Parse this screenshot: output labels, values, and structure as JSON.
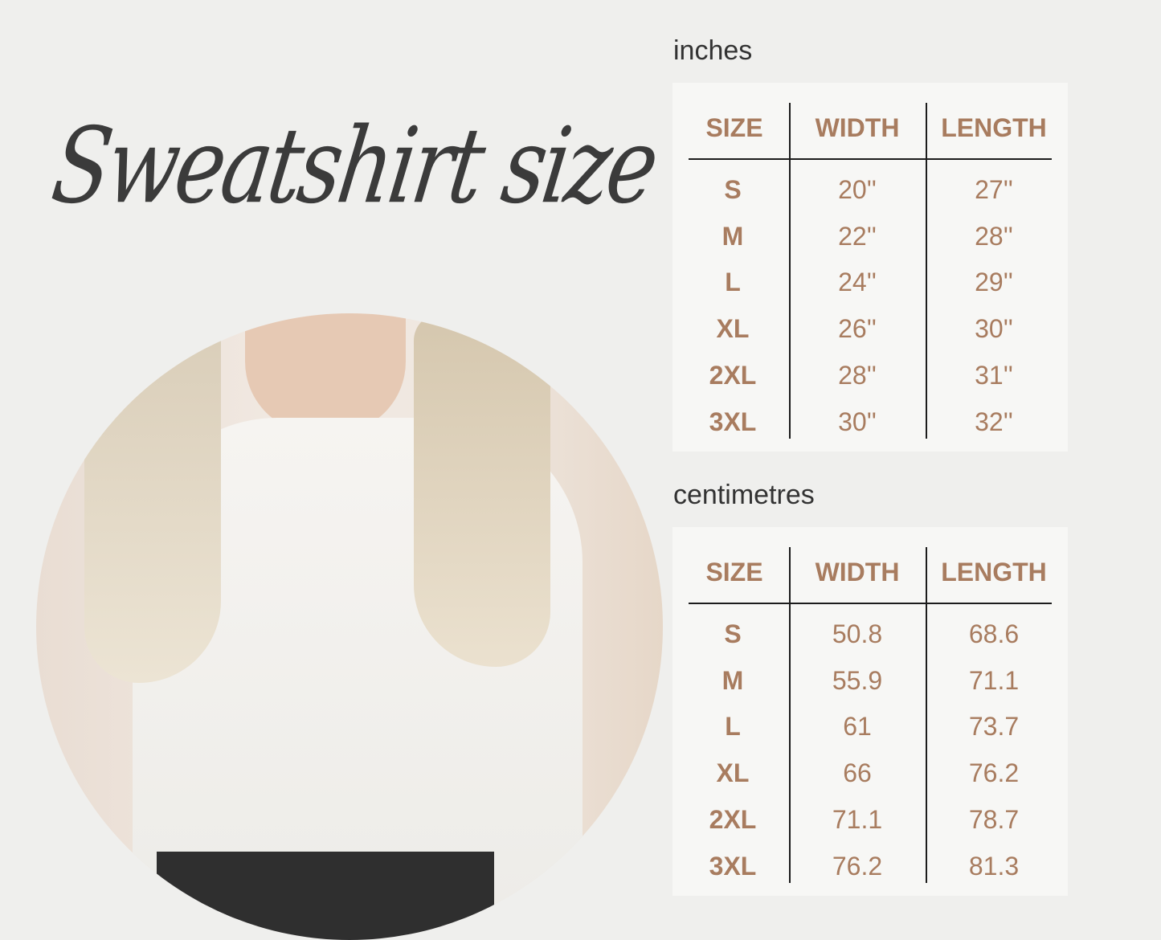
{
  "title": "Sweatshirt size",
  "accent_color": "#a87c5f",
  "headers": [
    "SIZE",
    "WIDTH",
    "LENGTH"
  ],
  "tables": [
    {
      "unit": "inches",
      "rows": [
        [
          "S",
          "20''",
          "27''"
        ],
        [
          "M",
          "22''",
          "28''"
        ],
        [
          "L",
          "24''",
          "29''"
        ],
        [
          "XL",
          "26''",
          "30''"
        ],
        [
          "2XL",
          "28''",
          "31''"
        ],
        [
          "3XL",
          "30''",
          "32''"
        ]
      ]
    },
    {
      "unit": "centimetres",
      "rows": [
        [
          "S",
          "50.8",
          "68.6"
        ],
        [
          "M",
          "55.9",
          "71.1"
        ],
        [
          "L",
          "61",
          "73.7"
        ],
        [
          "XL",
          "66",
          "76.2"
        ],
        [
          "2XL",
          "71.1",
          "78.7"
        ],
        [
          "3XL",
          "76.2",
          "81.3"
        ]
      ]
    }
  ]
}
